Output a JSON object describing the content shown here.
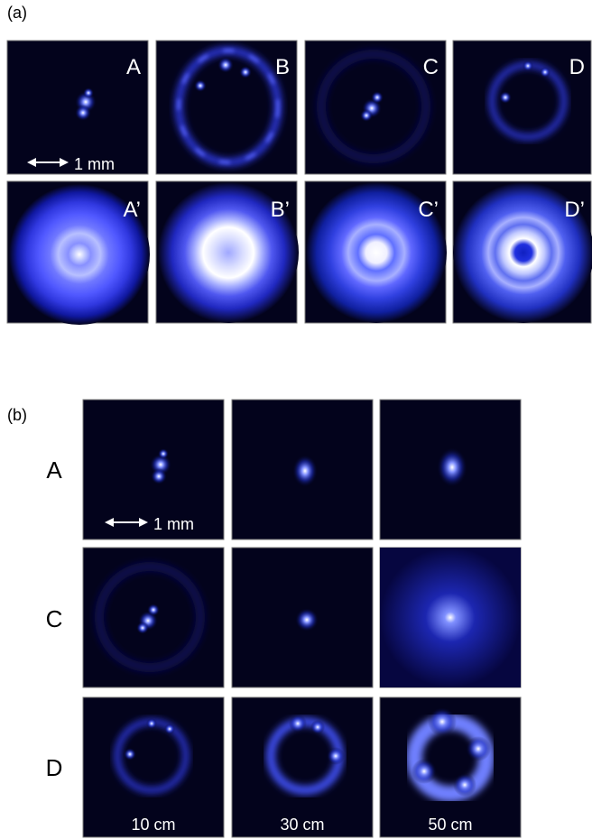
{
  "panel_a": {
    "label": "(a)",
    "top_row": [
      "A",
      "B",
      "C",
      "D"
    ],
    "bottom_row": [
      "A’",
      "B’",
      "C’",
      "D’"
    ],
    "scale_bar": "1 mm"
  },
  "panel_b": {
    "label": "(b)",
    "rows": [
      "A",
      "C",
      "D"
    ],
    "columns": [
      "10 cm",
      "30 cm",
      "50 cm"
    ],
    "scale_bar": "1 mm"
  }
}
